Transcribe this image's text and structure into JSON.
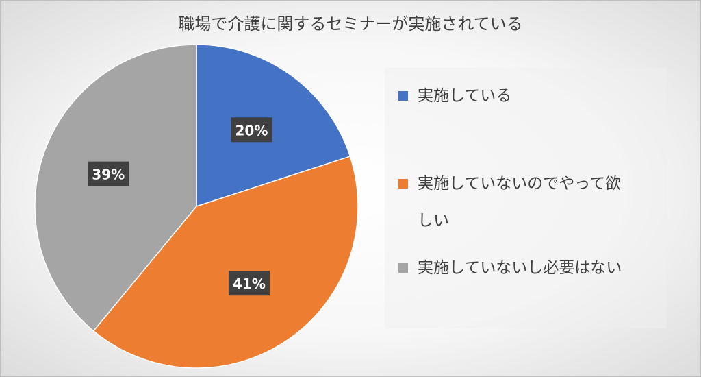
{
  "chart_data": {
    "type": "pie",
    "title": "職場で介護に関するセミナーが実施されている",
    "categories": [
      "実施している",
      "実施していないのでやって欲しい",
      "実施していないし必要はない"
    ],
    "values": [
      20,
      41,
      39
    ],
    "data_labels": [
      "20%",
      "41%",
      "39%"
    ],
    "colors": [
      "#4472C4",
      "#ED7D31",
      "#A5A5A5"
    ],
    "legend": {
      "placement": "right",
      "lines": [
        [
          "実施している"
        ],
        [
          "実施していないのでやって欲",
          "しい"
        ],
        [
          "実施していないし必要はない"
        ]
      ]
    }
  }
}
